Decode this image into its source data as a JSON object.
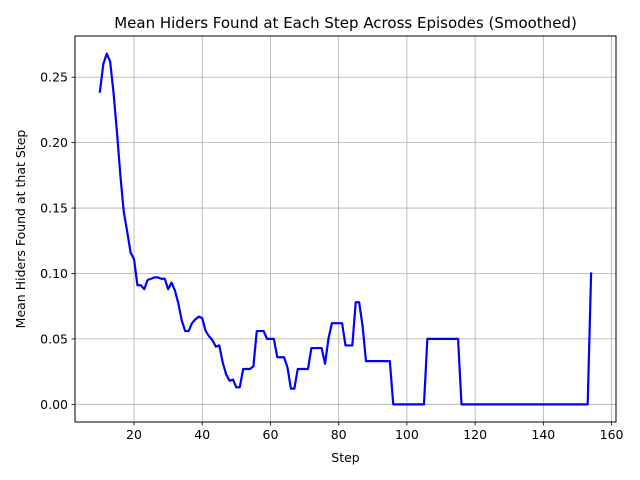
{
  "chart_data": {
    "type": "line",
    "title": "Mean Hiders Found at Each Step Across Episodes (Smoothed)",
    "xlabel": "Step",
    "ylabel": "Mean Hiders Found at that Step",
    "xlim": [
      2.7,
      161.3
    ],
    "ylim": [
      -0.0135,
      0.2815
    ],
    "xticks": [
      20,
      40,
      60,
      80,
      100,
      120,
      140,
      160
    ],
    "xtick_labels": [
      "20",
      "40",
      "60",
      "80",
      "100",
      "120",
      "140",
      "160"
    ],
    "yticks": [
      0.0,
      0.05,
      0.1,
      0.15,
      0.2,
      0.25
    ],
    "ytick_labels": [
      "0.00",
      "0.05",
      "0.10",
      "0.15",
      "0.20",
      "0.25"
    ],
    "grid": true,
    "legend": false,
    "series": [
      {
        "color": "#0000ff",
        "x": [
          10,
          11,
          12,
          13,
          14,
          15,
          16,
          17,
          18,
          19,
          20,
          21,
          22,
          23,
          24,
          25,
          26,
          27,
          28,
          29,
          30,
          31,
          32,
          33,
          34,
          35,
          36,
          37,
          38,
          39,
          40,
          41,
          42,
          43,
          44,
          45,
          46,
          47,
          48,
          49,
          50,
          51,
          52,
          53,
          54,
          55,
          56,
          57,
          58,
          59,
          60,
          61,
          62,
          63,
          64,
          65,
          66,
          67,
          68,
          69,
          70,
          71,
          72,
          73,
          74,
          75,
          76,
          77,
          78,
          79,
          80,
          81,
          82,
          83,
          84,
          85,
          86,
          87,
          88,
          89,
          90,
          91,
          92,
          93,
          94,
          95,
          96,
          97,
          98,
          99,
          100,
          101,
          102,
          103,
          104,
          105,
          106,
          107,
          108,
          109,
          110,
          111,
          112,
          113,
          114,
          115,
          116,
          120,
          130,
          140,
          150,
          153,
          154
        ],
        "y": [
          0.239,
          0.26,
          0.268,
          0.262,
          0.238,
          0.208,
          0.175,
          0.147,
          0.132,
          0.116,
          0.111,
          0.091,
          0.091,
          0.088,
          0.095,
          0.096,
          0.097,
          0.097,
          0.096,
          0.096,
          0.088,
          0.093,
          0.087,
          0.077,
          0.064,
          0.056,
          0.056,
          0.062,
          0.065,
          0.067,
          0.066,
          0.056,
          0.052,
          0.049,
          0.044,
          0.045,
          0.032,
          0.023,
          0.018,
          0.019,
          0.013,
          0.013,
          0.027,
          0.027,
          0.027,
          0.029,
          0.056,
          0.056,
          0.056,
          0.05,
          0.05,
          0.05,
          0.036,
          0.036,
          0.036,
          0.028,
          0.012,
          0.012,
          0.027,
          0.027,
          0.027,
          0.027,
          0.043,
          0.043,
          0.043,
          0.043,
          0.031,
          0.05,
          0.062,
          0.062,
          0.062,
          0.062,
          0.045,
          0.045,
          0.045,
          0.078,
          0.078,
          0.06,
          0.033,
          0.033,
          0.033,
          0.033,
          0.033,
          0.033,
          0.033,
          0.033,
          0.0,
          0.0,
          0.0,
          0.0,
          0.0,
          0.0,
          0.0,
          0.0,
          0.0,
          0.0,
          0.05,
          0.05,
          0.05,
          0.05,
          0.05,
          0.05,
          0.05,
          0.05,
          0.05,
          0.05,
          0.0,
          0.0,
          0.0,
          0.0,
          0.0,
          0.0,
          0.1
        ]
      }
    ]
  }
}
